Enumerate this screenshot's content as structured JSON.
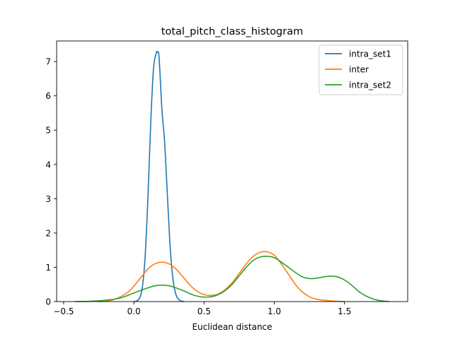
{
  "chart_data": {
    "type": "line",
    "title": "total_pitch_class_histogram",
    "xlabel": "Euclidean distance",
    "ylabel": "",
    "xlim": [
      -0.55,
      1.95
    ],
    "ylim": [
      0,
      7.6
    ],
    "xticks": [
      -0.5,
      0.0,
      0.5,
      1.0,
      1.5
    ],
    "xtick_labels": [
      "−0.5",
      "0.0",
      "0.5",
      "1.0",
      "1.5"
    ],
    "yticks": [
      0,
      1,
      2,
      3,
      4,
      5,
      6,
      7
    ],
    "ytick_labels": [
      "0",
      "1",
      "2",
      "3",
      "4",
      "5",
      "6",
      "7"
    ],
    "grid": false,
    "legend_position": "top-right",
    "series": [
      {
        "name": "intra_set1",
        "color": "#1f77b4",
        "x": [
          0.0,
          0.02,
          0.04,
          0.06,
          0.08,
          0.1,
          0.12,
          0.14,
          0.16,
          0.17,
          0.18,
          0.2,
          0.22,
          0.24,
          0.26,
          0.28,
          0.3,
          0.32,
          0.34,
          0.36
        ],
        "y": [
          0.0,
          0.02,
          0.1,
          0.4,
          1.3,
          3.0,
          5.2,
          6.8,
          7.25,
          7.27,
          7.1,
          5.6,
          4.6,
          3.0,
          1.5,
          0.6,
          0.2,
          0.06,
          0.01,
          0.0
        ]
      },
      {
        "name": "inter",
        "color": "#ff7f0e",
        "x": [
          -0.25,
          -0.15,
          -0.05,
          0.0,
          0.05,
          0.1,
          0.15,
          0.2,
          0.25,
          0.3,
          0.35,
          0.4,
          0.45,
          0.5,
          0.55,
          0.6,
          0.65,
          0.7,
          0.75,
          0.8,
          0.85,
          0.9,
          0.95,
          1.0,
          1.05,
          1.1,
          1.15,
          1.2,
          1.25,
          1.3,
          1.35,
          1.4,
          1.45,
          1.5
        ],
        "y": [
          0.0,
          0.05,
          0.25,
          0.45,
          0.7,
          0.95,
          1.1,
          1.15,
          1.1,
          0.95,
          0.72,
          0.48,
          0.3,
          0.2,
          0.18,
          0.22,
          0.35,
          0.55,
          0.82,
          1.1,
          1.32,
          1.44,
          1.45,
          1.35,
          1.1,
          0.8,
          0.5,
          0.28,
          0.14,
          0.07,
          0.04,
          0.02,
          0.01,
          0.0
        ]
      },
      {
        "name": "intra_set2",
        "color": "#2ca02c",
        "x": [
          -0.42,
          -0.3,
          -0.2,
          -0.1,
          0.0,
          0.05,
          0.1,
          0.15,
          0.2,
          0.25,
          0.3,
          0.35,
          0.4,
          0.45,
          0.5,
          0.55,
          0.6,
          0.65,
          0.7,
          0.75,
          0.8,
          0.85,
          0.9,
          0.95,
          1.0,
          1.05,
          1.1,
          1.15,
          1.2,
          1.25,
          1.3,
          1.35,
          1.4,
          1.45,
          1.5,
          1.55,
          1.6,
          1.65,
          1.7,
          1.75,
          1.82
        ],
        "y": [
          0.0,
          0.01,
          0.04,
          0.1,
          0.25,
          0.33,
          0.4,
          0.46,
          0.48,
          0.46,
          0.4,
          0.32,
          0.23,
          0.16,
          0.13,
          0.14,
          0.2,
          0.32,
          0.5,
          0.75,
          1.0,
          1.2,
          1.3,
          1.32,
          1.28,
          1.15,
          1.0,
          0.85,
          0.72,
          0.67,
          0.68,
          0.72,
          0.74,
          0.72,
          0.63,
          0.48,
          0.3,
          0.17,
          0.08,
          0.03,
          0.0
        ]
      }
    ]
  }
}
